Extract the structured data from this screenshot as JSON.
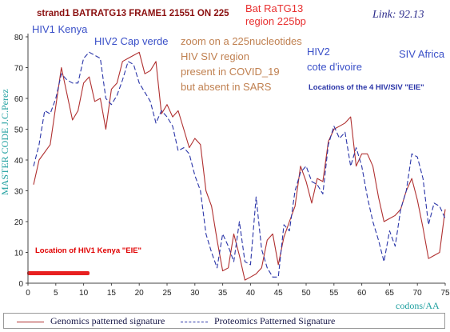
{
  "header": {
    "title": "strand1 BATRATG13 FRAME1  21551 ON 225",
    "bat_label_line1": "Bat RaTG13",
    "bat_label_line2": "region 225bp",
    "link": "Link: 92.13"
  },
  "annotations": {
    "hiv1_kenya": "HIV1 Kenya",
    "hiv2_cap_verde": "HIV2 Cap verde",
    "zoom_lines": [
      "zoom on a 225nucleotides",
      "HIV SIV region",
      "present in COVID_19",
      "but absent in SARS"
    ],
    "hiv2_line1": "HIV2",
    "hiv2_line2": "cote d'ivoire",
    "siv_africa": "SIV Africa",
    "locations": "Locations of the 4 HIV/SIV \"EIE\"",
    "location_kenya": "Location of HIV1 Kenya \"EIE\""
  },
  "colors": {
    "genomics": "#b03030",
    "proteomics": "#2a35a8",
    "title": "#8b1010",
    "bat_label": "#e83030",
    "blue_label": "#3a50c8",
    "zoom_label": "#c08050",
    "location_kenya": "#e00000",
    "red_bar": "#e82020",
    "axis_title": "#20a0a0"
  },
  "chart_data": {
    "type": "line",
    "xlabel": "codons/AA",
    "ylabel": "MASTER CODE J.C.Perez",
    "xlim": [
      0,
      75
    ],
    "ylim": [
      0,
      80
    ],
    "x_ticks": [
      0,
      5,
      10,
      15,
      20,
      25,
      30,
      35,
      40,
      45,
      50,
      55,
      60,
      65,
      70,
      75
    ],
    "y_ticks": [
      0,
      10,
      20,
      30,
      40,
      50,
      60,
      70,
      80
    ],
    "grid": false,
    "legend_position": "bottom",
    "series": [
      {
        "name": "Genomics patterned signature",
        "style": "solid",
        "x": [
          1,
          2,
          4,
          6,
          8,
          9,
          10,
          11,
          12,
          13,
          14,
          15,
          16,
          17,
          18,
          19,
          20,
          21,
          22,
          23,
          24,
          25,
          26,
          27,
          28,
          29,
          30,
          31,
          32,
          33,
          34,
          35,
          36,
          37,
          38,
          39,
          40,
          41,
          42,
          43,
          44,
          45,
          46,
          47,
          48,
          49,
          50,
          51,
          52,
          53,
          54,
          55,
          56,
          57,
          58,
          59,
          60,
          61,
          62,
          63,
          64,
          65,
          66,
          67,
          68,
          69,
          70,
          71,
          72,
          73,
          74,
          75
        ],
        "y": [
          32,
          40,
          45,
          70,
          53,
          56,
          65,
          67,
          59,
          60,
          50,
          63,
          65,
          72,
          73,
          74,
          75,
          68,
          69,
          72,
          55,
          58,
          54,
          56,
          50,
          44,
          47,
          45,
          30,
          25,
          14,
          4,
          5,
          16,
          9,
          1,
          2,
          3,
          5,
          14,
          16,
          6,
          15,
          20,
          25,
          38,
          33,
          26,
          34,
          33,
          46,
          50,
          51,
          52,
          54,
          38,
          42,
          42,
          38,
          28,
          20,
          21,
          22,
          24,
          30,
          34,
          27,
          18,
          8,
          9,
          10,
          24
        ],
        "color": "genomics"
      },
      {
        "name": "Proteomics Patterned Signature",
        "style": "dashed",
        "x": [
          1,
          2,
          3,
          4,
          5,
          6,
          7,
          8,
          9,
          10,
          11,
          12,
          13,
          14,
          15,
          16,
          17,
          18,
          19,
          20,
          21,
          22,
          23,
          24,
          25,
          26,
          27,
          28,
          29,
          30,
          31,
          32,
          33,
          34,
          35,
          36,
          37,
          38,
          39,
          40,
          41,
          42,
          43,
          44,
          45,
          46,
          47,
          48,
          49,
          50,
          51,
          52,
          53,
          54,
          55,
          56,
          57,
          58,
          59,
          60,
          61,
          62,
          63,
          64,
          65,
          66,
          67,
          68,
          69,
          70,
          71,
          72,
          73,
          74,
          75
        ],
        "y": [
          38,
          45,
          56,
          55,
          60,
          68,
          66,
          65,
          65,
          73,
          75,
          74,
          73,
          60,
          58,
          61,
          66,
          72,
          71,
          65,
          62,
          59,
          52,
          56,
          54,
          51,
          43,
          44,
          42,
          35,
          30,
          16,
          10,
          5,
          16,
          12,
          7,
          20,
          7,
          6,
          28,
          11,
          5,
          2,
          2,
          19,
          17,
          30,
          36,
          38,
          33,
          32,
          29,
          45,
          51,
          47,
          49,
          38,
          44,
          38,
          28,
          20,
          14,
          7,
          17,
          12,
          24,
          30,
          42,
          41,
          34,
          19,
          26,
          25,
          21
        ],
        "color": "proteomics"
      }
    ]
  }
}
